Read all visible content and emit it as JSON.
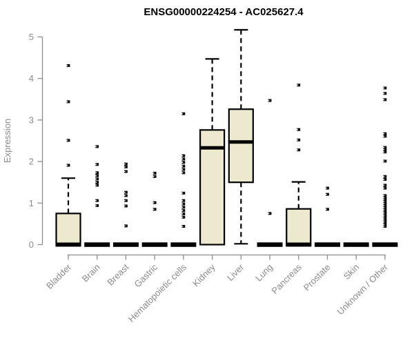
{
  "chart_data": {
    "type": "boxplot",
    "title": "ENSG00000224254 - AC025627.4",
    "ylabel": "Expression",
    "ylim": [
      0,
      5
    ],
    "yticks": [
      0,
      1,
      2,
      3,
      4,
      5
    ],
    "grid": false,
    "legend": "none",
    "categories": [
      "Bladder",
      "Brain",
      "Breast",
      "Gastric",
      "Hematopoietic cells",
      "Kidney",
      "Liver",
      "Lung",
      "Pancreas",
      "Prostate",
      "Skin",
      "Unknown / Other"
    ],
    "series": [
      {
        "category": "Bladder",
        "q1": 0,
        "median": 0,
        "q3": 0.75,
        "whisker_low": 0,
        "whisker_high": 1.6,
        "outliers": [
          1.91,
          2.51,
          3.44,
          4.31
        ]
      },
      {
        "category": "Brain",
        "q1": 0,
        "median": 0,
        "q3": 0,
        "whisker_low": 0,
        "whisker_high": 0,
        "outliers": [
          0.94,
          1.06,
          1.43,
          1.5,
          1.58,
          1.66,
          1.73,
          1.93,
          2.36
        ]
      },
      {
        "category": "Breast",
        "q1": 0,
        "median": 0,
        "q3": 0,
        "whisker_low": 0,
        "whisker_high": 0,
        "outliers": [
          0.45,
          0.93,
          1.06,
          1.18,
          1.26,
          1.76,
          1.87,
          1.94
        ]
      },
      {
        "category": "Gastric",
        "q1": 0,
        "median": 0,
        "q3": 0,
        "whisker_low": 0,
        "whisker_high": 0,
        "outliers": [
          0.85,
          1.01,
          1.64,
          1.72
        ]
      },
      {
        "category": "Hematopoietic cells",
        "q1": 0,
        "median": 0,
        "q3": 0,
        "whisker_low": 0,
        "whisker_high": 0,
        "outliers": [
          0.44,
          0.66,
          0.74,
          0.82,
          0.9,
          0.98,
          1.06,
          1.24,
          1.73,
          1.81,
          1.89,
          1.98,
          2.06,
          2.14,
          3.15
        ]
      },
      {
        "category": "Kidney",
        "q1": 0,
        "median": 2.33,
        "q3": 2.76,
        "whisker_low": 0,
        "whisker_high": 4.47,
        "outliers": []
      },
      {
        "category": "Liver",
        "q1": 1.5,
        "median": 2.47,
        "q3": 3.26,
        "whisker_low": 0.02,
        "whisker_high": 5.17,
        "outliers": []
      },
      {
        "category": "Lung",
        "q1": 0,
        "median": 0,
        "q3": 0,
        "whisker_low": 0,
        "whisker_high": 0,
        "outliers": [
          0.75,
          3.47
        ]
      },
      {
        "category": "Pancreas",
        "q1": 0,
        "median": 0,
        "q3": 0.86,
        "whisker_low": 0,
        "whisker_high": 1.51,
        "outliers": [
          2.28,
          2.52,
          2.77,
          3.84
        ]
      },
      {
        "category": "Prostate",
        "q1": 0,
        "median": 0,
        "q3": 0,
        "whisker_low": 0,
        "whisker_high": 0,
        "outliers": [
          0.85,
          1.21,
          1.36
        ]
      },
      {
        "category": "Skin",
        "q1": 0,
        "median": 0,
        "q3": 0,
        "whisker_low": 0,
        "whisker_high": 0,
        "outliers": []
      },
      {
        "category": "Unknown / Other",
        "q1": 0,
        "median": 0,
        "q3": 0,
        "whisker_low": 0,
        "whisker_high": 0,
        "outliers": [
          0.44,
          0.48,
          0.53,
          0.57,
          0.62,
          0.67,
          0.71,
          0.76,
          0.81,
          0.85,
          0.9,
          0.95,
          0.99,
          1.04,
          1.09,
          1.13,
          1.18,
          1.36,
          1.43,
          1.57,
          1.64,
          2.01,
          2.23,
          2.29,
          2.34,
          2.61,
          2.67,
          3.49,
          3.64,
          3.77
        ]
      }
    ],
    "colors": {
      "box_fill": "#EDE9CE",
      "box_stroke": "#000000",
      "median": "#000000",
      "whisker": "#000000",
      "outlier": "#000000",
      "axis": "#8B8B8B",
      "label": "#8B8B8B",
      "title": "#000000",
      "background": "#FFFFFF"
    }
  }
}
